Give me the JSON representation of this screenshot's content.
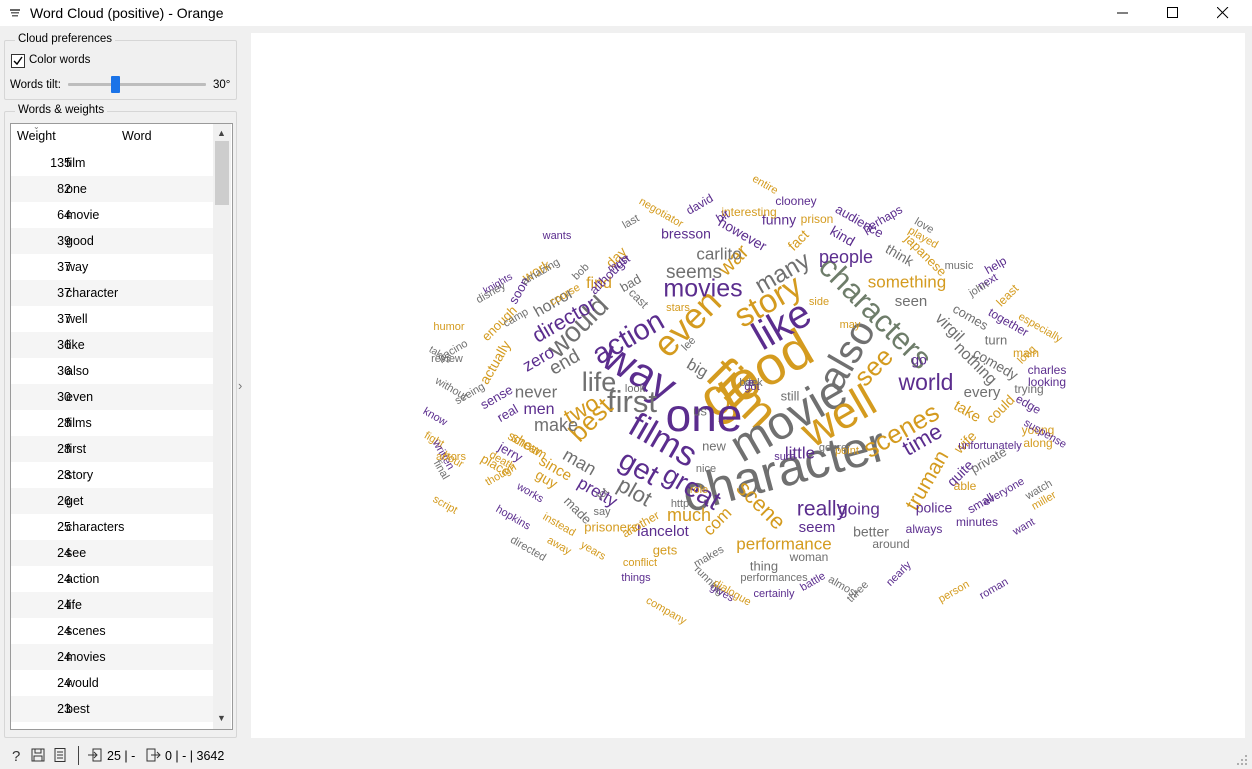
{
  "window": {
    "title": "Word Cloud (positive) - Orange",
    "icon": "orange-widget-icon"
  },
  "controls": {
    "cloud_preferences_title": "Cloud preferences",
    "color_words_label": "Color words",
    "color_words_checked": true,
    "words_tilt_label": "Words tilt:",
    "words_tilt_value": "30°",
    "words_tilt_fraction": 0.33
  },
  "table": {
    "title": "Words & weights",
    "headers": [
      "Weight",
      "Word"
    ],
    "rows": [
      [
        "135",
        "film"
      ],
      [
        "82",
        "one"
      ],
      [
        "64",
        "movie"
      ],
      [
        "39",
        "good"
      ],
      [
        "37",
        "way"
      ],
      [
        "37",
        "character"
      ],
      [
        "37",
        "well"
      ],
      [
        "36",
        "like"
      ],
      [
        "36",
        "also"
      ],
      [
        "30",
        "even"
      ],
      [
        "28",
        "films"
      ],
      [
        "28",
        "first"
      ],
      [
        "28",
        "story"
      ],
      [
        "26",
        "get"
      ],
      [
        "25",
        "characters"
      ],
      [
        "24",
        "see"
      ],
      [
        "24",
        "action"
      ],
      [
        "24",
        "life"
      ],
      [
        "24",
        "scenes"
      ],
      [
        "24",
        "movies"
      ],
      [
        "24",
        "would"
      ],
      [
        "23",
        "best"
      ]
    ]
  },
  "colors": {
    "purple": "#5b2d8e",
    "gold": "#d49b1f",
    "gray": "#707070",
    "green": "#6e7d6a"
  },
  "cloud_words": [
    {
      "text": "character",
      "color": "gray"
    },
    {
      "text": "good",
      "color": "gold"
    },
    {
      "text": "film",
      "color": "gold"
    },
    {
      "text": "movie",
      "color": "gray"
    },
    {
      "text": "one",
      "color": "purple"
    },
    {
      "text": "way",
      "color": "purple"
    },
    {
      "text": "like",
      "color": "purple"
    },
    {
      "text": "well",
      "color": "gold"
    },
    {
      "text": "also",
      "color": "gray"
    },
    {
      "text": "even",
      "color": "gold"
    },
    {
      "text": "story",
      "color": "gold"
    },
    {
      "text": "films",
      "color": "purple"
    },
    {
      "text": "first",
      "color": "gray"
    },
    {
      "text": "characters",
      "color": "green"
    },
    {
      "text": "movies",
      "color": "purple"
    },
    {
      "text": "get",
      "color": "purple"
    },
    {
      "text": "action",
      "color": "purple"
    },
    {
      "text": "would",
      "color": "gray"
    },
    {
      "text": "life",
      "color": "gray"
    },
    {
      "text": "scenes",
      "color": "gold"
    },
    {
      "text": "see",
      "color": "gold"
    },
    {
      "text": "best",
      "color": "gold"
    },
    {
      "text": "great",
      "color": "purple"
    },
    {
      "text": "world",
      "color": "purple"
    },
    {
      "text": "plot",
      "color": "gray"
    },
    {
      "text": "two",
      "color": "gold"
    },
    {
      "text": "many",
      "color": "gray"
    },
    {
      "text": "war",
      "color": "gold"
    },
    {
      "text": "scene",
      "color": "gold"
    },
    {
      "text": "time",
      "color": "purple"
    },
    {
      "text": "truman",
      "color": "gold"
    },
    {
      "text": "really",
      "color": "purple"
    },
    {
      "text": "seems",
      "color": "gray"
    },
    {
      "text": "people",
      "color": "purple"
    },
    {
      "text": "director",
      "color": "purple"
    },
    {
      "text": "end",
      "color": "gray"
    },
    {
      "text": "make",
      "color": "gray"
    },
    {
      "text": "man",
      "color": "gray"
    },
    {
      "text": "much",
      "color": "gold"
    },
    {
      "text": "little",
      "color": "purple"
    },
    {
      "text": "performance",
      "color": "gold"
    },
    {
      "text": "pretty",
      "color": "purple"
    },
    {
      "text": "going",
      "color": "purple"
    },
    {
      "text": "com",
      "color": "gold"
    },
    {
      "text": "something",
      "color": "gold"
    },
    {
      "text": "carlito",
      "color": "gray"
    },
    {
      "text": "never",
      "color": "gray"
    },
    {
      "text": "zero",
      "color": "purple"
    },
    {
      "text": "big",
      "color": "gray"
    },
    {
      "text": "virgil",
      "color": "gray"
    },
    {
      "text": "nothing",
      "color": "gray"
    },
    {
      "text": "lancelot",
      "color": "purple"
    },
    {
      "text": "seem",
      "color": "purple"
    },
    {
      "text": "since",
      "color": "gold"
    },
    {
      "text": "men",
      "color": "purple"
    },
    {
      "text": "horror",
      "color": "gray"
    },
    {
      "text": "find",
      "color": "gold"
    },
    {
      "text": "seen",
      "color": "gray"
    },
    {
      "text": "every",
      "color": "gray"
    },
    {
      "text": "take",
      "color": "gold"
    },
    {
      "text": "wife",
      "color": "gold"
    },
    {
      "text": "quite",
      "color": "purple"
    },
    {
      "text": "police",
      "color": "purple"
    },
    {
      "text": "better",
      "color": "gray"
    },
    {
      "text": "bresson",
      "color": "purple"
    },
    {
      "text": "however",
      "color": "purple"
    },
    {
      "text": "fact",
      "color": "gold"
    },
    {
      "text": "funny",
      "color": "purple"
    },
    {
      "text": "kind",
      "color": "purple"
    },
    {
      "text": "think",
      "color": "gray"
    },
    {
      "text": "go",
      "color": "purple"
    },
    {
      "text": "comedy",
      "color": "gray"
    },
    {
      "text": "could",
      "color": "gold"
    },
    {
      "text": "private",
      "color": "gray"
    },
    {
      "text": "guy",
      "color": "gold"
    },
    {
      "text": "show",
      "color": "gold"
    },
    {
      "text": "scream",
      "color": "gold"
    },
    {
      "text": "actually",
      "color": "gold"
    },
    {
      "text": "sense",
      "color": "purple"
    },
    {
      "text": "real",
      "color": "purple"
    },
    {
      "text": "jerry",
      "color": "purple"
    },
    {
      "text": "place",
      "color": "gold"
    },
    {
      "text": "work",
      "color": "gold"
    },
    {
      "text": "day",
      "color": "gold"
    },
    {
      "text": "bad",
      "color": "gray"
    },
    {
      "text": "although",
      "color": "purple"
    },
    {
      "text": "soon",
      "color": "purple"
    },
    {
      "text": "enough",
      "color": "gold"
    },
    {
      "text": "audience",
      "color": "purple"
    },
    {
      "text": "japanese",
      "color": "gold"
    },
    {
      "text": "comes",
      "color": "gray"
    },
    {
      "text": "turn",
      "color": "gray"
    },
    {
      "text": "made",
      "color": "gray"
    },
    {
      "text": "prisoners",
      "color": "gold"
    },
    {
      "text": "gets",
      "color": "gold"
    },
    {
      "text": "another",
      "color": "gold"
    },
    {
      "text": "new",
      "color": "gray"
    },
    {
      "text": "thing",
      "color": "gray"
    },
    {
      "text": "woman",
      "color": "gray"
    },
    {
      "text": "around",
      "color": "gray"
    },
    {
      "text": "always",
      "color": "purple"
    },
    {
      "text": "minutes",
      "color": "purple"
    },
    {
      "text": "still",
      "color": "gray"
    },
    {
      "text": "us",
      "color": "gray"
    },
    {
      "text": "able",
      "color": "gold"
    },
    {
      "text": "small",
      "color": "purple"
    },
    {
      "text": "edge",
      "color": "purple"
    },
    {
      "text": "young",
      "color": "gold"
    },
    {
      "text": "along",
      "color": "gold"
    },
    {
      "text": "main",
      "color": "gold"
    },
    {
      "text": "charles",
      "color": "purple"
    },
    {
      "text": "looking",
      "color": "purple"
    },
    {
      "text": "trying",
      "color": "gray"
    },
    {
      "text": "together",
      "color": "purple"
    },
    {
      "text": "least",
      "color": "gold"
    },
    {
      "text": "especially",
      "color": "gold"
    },
    {
      "text": "long",
      "color": "gold"
    },
    {
      "text": "help",
      "color": "purple"
    },
    {
      "text": "next",
      "color": "purple"
    },
    {
      "text": "john",
      "color": "gray"
    },
    {
      "text": "music",
      "color": "gray"
    },
    {
      "text": "love",
      "color": "gray"
    },
    {
      "text": "played",
      "color": "gold"
    },
    {
      "text": "perhaps",
      "color": "purple"
    },
    {
      "text": "entire",
      "color": "gold"
    },
    {
      "text": "clooney",
      "color": "purple"
    },
    {
      "text": "prison",
      "color": "gold"
    },
    {
      "text": "interesting",
      "color": "gold"
    },
    {
      "text": "bit",
      "color": "purple"
    },
    {
      "text": "david",
      "color": "purple"
    },
    {
      "text": "negotiator",
      "color": "gold"
    },
    {
      "text": "last",
      "color": "gray"
    },
    {
      "text": "must",
      "color": "purple"
    },
    {
      "text": "wants",
      "color": "purple"
    },
    {
      "text": "bob",
      "color": "gray"
    },
    {
      "text": "amazing",
      "color": "gray"
    },
    {
      "text": "course",
      "color": "gold"
    },
    {
      "text": "camp",
      "color": "gray"
    },
    {
      "text": "knights",
      "color": "purple"
    },
    {
      "text": "disney",
      "color": "gray"
    },
    {
      "text": "humor",
      "color": "gold"
    },
    {
      "text": "takes",
      "color": "gray"
    },
    {
      "text": "pacino",
      "color": "gray"
    },
    {
      "text": "review",
      "color": "gray"
    },
    {
      "text": "without",
      "color": "gray"
    },
    {
      "text": "seeing",
      "color": "gray"
    },
    {
      "text": "know",
      "color": "purple"
    },
    {
      "text": "fight",
      "color": "gold"
    },
    {
      "text": "written",
      "color": "purple"
    },
    {
      "text": "final",
      "color": "gray"
    },
    {
      "text": "hour",
      "color": "gold"
    },
    {
      "text": "actors",
      "color": "gold"
    },
    {
      "text": "script",
      "color": "gold"
    },
    {
      "text": "death",
      "color": "gold"
    },
    {
      "text": "though",
      "color": "gold"
    },
    {
      "text": "works",
      "color": "purple"
    },
    {
      "text": "hopkins",
      "color": "purple"
    },
    {
      "text": "directed",
      "color": "gray"
    },
    {
      "text": "instead",
      "color": "gold"
    },
    {
      "text": "away",
      "color": "gold"
    },
    {
      "text": "years",
      "color": "gold"
    },
    {
      "text": "conflict",
      "color": "gold"
    },
    {
      "text": "things",
      "color": "purple"
    },
    {
      "text": "company",
      "color": "gold"
    },
    {
      "text": "running",
      "color": "gray"
    },
    {
      "text": "makes",
      "color": "gray"
    },
    {
      "text": "gives",
      "color": "purple"
    },
    {
      "text": "dialogue",
      "color": "gold"
    },
    {
      "text": "performances",
      "color": "gray"
    },
    {
      "text": "certainly",
      "color": "purple"
    },
    {
      "text": "battle",
      "color": "purple"
    },
    {
      "text": "almost",
      "color": "gray"
    },
    {
      "text": "three",
      "color": "gray"
    },
    {
      "text": "nearly",
      "color": "purple"
    },
    {
      "text": "person",
      "color": "gold"
    },
    {
      "text": "roman",
      "color": "purple"
    },
    {
      "text": "want",
      "color": "purple"
    },
    {
      "text": "miller",
      "color": "gold"
    },
    {
      "text": "watch",
      "color": "gray"
    },
    {
      "text": "everyone",
      "color": "purple"
    },
    {
      "text": "unfortunately",
      "color": "purple"
    },
    {
      "text": "suspense",
      "color": "purple"
    },
    {
      "text": "sure",
      "color": "purple"
    },
    {
      "text": "genre",
      "color": "gray"
    },
    {
      "text": "point",
      "color": "gold"
    },
    {
      "text": "nice",
      "color": "gray"
    },
    {
      "text": "http",
      "color": "gray"
    },
    {
      "text": "role",
      "color": "gold"
    },
    {
      "text": "lot",
      "color": "gray"
    },
    {
      "text": "say",
      "color": "gray"
    },
    {
      "text": "cast",
      "color": "gray"
    },
    {
      "text": "stars",
      "color": "gold"
    },
    {
      "text": "lee",
      "color": "gray"
    },
    {
      "text": "side",
      "color": "gold"
    },
    {
      "text": "may",
      "color": "gold"
    },
    {
      "text": "look",
      "color": "gray"
    },
    {
      "text": "got",
      "color": "purple"
    },
    {
      "text": "back",
      "color": "gray"
    },
    {
      "text": "de",
      "color": "gray"
    },
    {
      "text": "e",
      "color": "purple"
    }
  ],
  "status": {
    "input_count": "25 | -",
    "output_count": "0 | - | 3642"
  }
}
